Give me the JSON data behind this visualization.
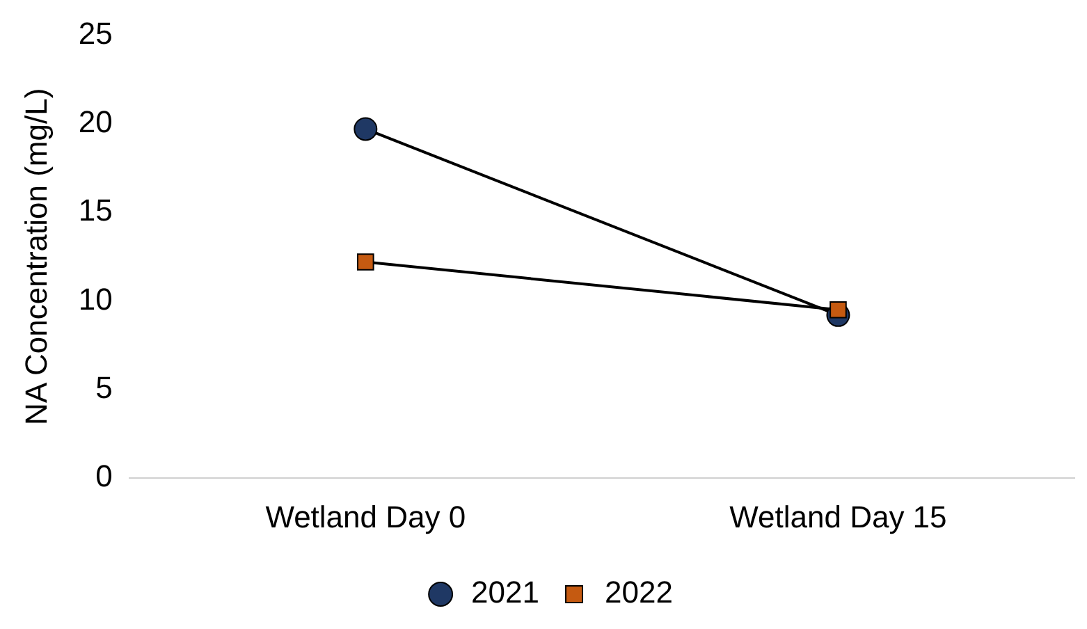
{
  "chart_data": {
    "type": "line",
    "ylabel": "NA Concentration (mg/L)",
    "categories": [
      "Wetland Day 0",
      "Wetland Day 15"
    ],
    "series": [
      {
        "name": "2021",
        "color": "#1f3864",
        "marker": "circle",
        "values": [
          19.7,
          9.2
        ]
      },
      {
        "name": "2022",
        "color": "#c55a11",
        "marker": "square",
        "values": [
          12.2,
          9.5
        ]
      }
    ],
    "ylim": [
      0,
      25
    ],
    "yticks": [
      0,
      5,
      10,
      15,
      20,
      25
    ],
    "grid": false,
    "legend": "bottom",
    "line_style": "solid"
  }
}
